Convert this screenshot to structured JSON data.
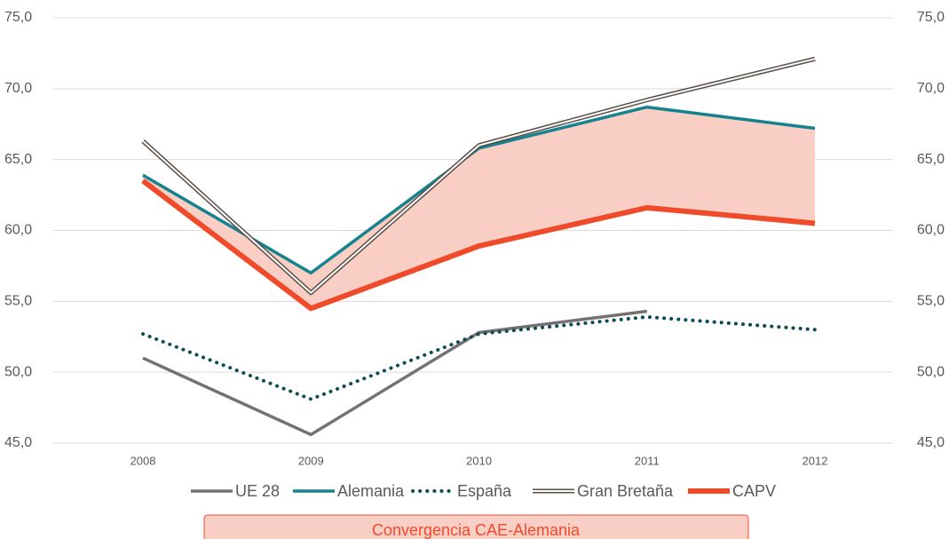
{
  "chart_data": {
    "type": "line",
    "categories": [
      "2008",
      "2009",
      "2010",
      "2011",
      "2012"
    ],
    "series": [
      {
        "name": "UE 28",
        "color": "#757171",
        "style": "solid",
        "values": [
          51.0,
          45.6,
          52.8,
          54.3,
          null
        ]
      },
      {
        "name": "Alemania",
        "color": "#15838f",
        "style": "solid",
        "values": [
          63.9,
          57.0,
          65.8,
          68.7,
          67.2
        ]
      },
      {
        "name": "España",
        "color": "#0e4d55",
        "style": "dotted",
        "values": [
          52.7,
          48.1,
          52.7,
          53.9,
          53.0
        ]
      },
      {
        "name": "Gran Bretaña",
        "color": "#5a4f47",
        "style": "double",
        "values": [
          66.3,
          55.6,
          66.0,
          69.2,
          72.1
        ]
      },
      {
        "name": "CAPV",
        "color": "#ef4b2a",
        "style": "thick",
        "values": [
          63.5,
          54.5,
          58.9,
          61.6,
          60.5
        ]
      }
    ],
    "area_label": "Convergencia CAE-Alemania",
    "area_color": "#f9cec5",
    "ylim": [
      45,
      75
    ],
    "yticks": [
      {
        "value": 45,
        "label": "45,0"
      },
      {
        "value": 50,
        "label": "50,0"
      },
      {
        "value": 55,
        "label": "55,0"
      },
      {
        "value": 60,
        "label": "60,0"
      },
      {
        "value": 65,
        "label": "65,0"
      },
      {
        "value": 70,
        "label": "70,0"
      },
      {
        "value": 75,
        "label": "75,0"
      }
    ],
    "y2lim": [
      45,
      75
    ],
    "y2ticks": [
      {
        "value": 45,
        "label": "45,0"
      },
      {
        "value": 50,
        "label": "50,0"
      },
      {
        "value": 55,
        "label": "55,0"
      },
      {
        "value": 60,
        "label": "60,0"
      },
      {
        "value": 65,
        "label": "65,0"
      },
      {
        "value": 70,
        "label": "70,0"
      },
      {
        "value": 75,
        "label": "75,0"
      }
    ],
    "grid": true
  }
}
